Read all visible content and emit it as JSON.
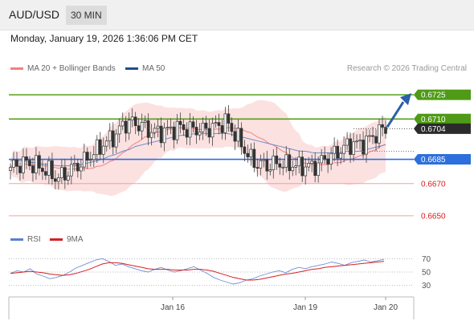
{
  "header": {
    "pair": "AUD/USD",
    "timeframe": "30 MIN"
  },
  "datetime": "Monday, January 19, 2026 1:36:06 PM CET",
  "legend": {
    "main": [
      {
        "label": "MA 20 + Bollinger Bands",
        "color": "#f08080"
      },
      {
        "label": "MA 50",
        "color": "#1f4e8c"
      }
    ],
    "rsi": [
      {
        "label": "RSI",
        "color": "#5a7fd6"
      },
      {
        "label": "9MA",
        "color": "#d62020"
      }
    ]
  },
  "credit": "Research © 2026 Trading Central",
  "chart_data": {
    "type": "candlestick",
    "y_range": [
      0.6643,
      0.6736
    ],
    "x_ticks": [
      "Jan 16",
      "Jan 19",
      "Jan 20"
    ],
    "current_price": "0.6704",
    "levels": [
      {
        "value": 0.6725,
        "label": "0.6725",
        "kind": "resistance"
      },
      {
        "value": 0.671,
        "label": "0.6710",
        "kind": "resistance"
      },
      {
        "value": 0.6685,
        "label": "0.6685",
        "kind": "pivot"
      },
      {
        "value": 0.667,
        "label": "0.6670",
        "kind": "support"
      },
      {
        "value": 0.665,
        "label": "0.6650",
        "kind": "support"
      }
    ],
    "close_path": [
      0.668,
      0.6681,
      0.6683,
      0.6682,
      0.6681,
      0.6679,
      0.6677,
      0.6673,
      0.6675,
      0.6678,
      0.6681,
      0.6683,
      0.6687,
      0.669,
      0.6694,
      0.6697,
      0.67,
      0.6706,
      0.6708,
      0.6707,
      0.6706,
      0.6703,
      0.6702,
      0.6702,
      0.6703,
      0.6704,
      0.6705,
      0.6703,
      0.6704,
      0.6703,
      0.6704,
      0.6705,
      0.6707,
      0.6708,
      0.6701,
      0.6695,
      0.6688,
      0.6683,
      0.6682,
      0.6681,
      0.6682,
      0.6683,
      0.6681,
      0.6682,
      0.668,
      0.6681,
      0.668,
      0.6683,
      0.6686,
      0.6688,
      0.669,
      0.6693,
      0.6695,
      0.6694,
      0.6696,
      0.6699,
      0.6702,
      0.6704
    ],
    "ma50": [
      0.6684,
      0.6684,
      0.6684,
      0.6683,
      0.6683,
      0.6682,
      0.6682,
      0.6681,
      0.6681,
      0.6681,
      0.6681,
      0.6682,
      0.6683,
      0.6684,
      0.6685,
      0.6687,
      0.6688,
      0.669,
      0.6691,
      0.6693,
      0.6694,
      0.6695,
      0.6696,
      0.6697,
      0.6698,
      0.6699,
      0.67,
      0.67,
      0.6701,
      0.6701,
      0.6701,
      0.6701,
      0.6701,
      0.6701,
      0.67,
      0.6699,
      0.6698,
      0.6697,
      0.6696,
      0.6695,
      0.6694,
      0.6693,
      0.6692,
      0.6691,
      0.669,
      0.669,
      0.6689,
      0.6689,
      0.6689,
      0.6689,
      0.6689,
      0.669,
      0.669,
      0.669,
      0.6691,
      0.6692,
      0.6693,
      0.6694
    ],
    "forecast": {
      "from": 0.6704,
      "to": 0.6725
    },
    "rsi": {
      "y_range": [
        20,
        80
      ],
      "levels": [
        70,
        50,
        30
      ],
      "rsi": [
        48,
        52,
        50,
        55,
        47,
        44,
        40,
        42,
        45,
        50,
        56,
        60,
        64,
        68,
        70,
        66,
        60,
        62,
        58,
        55,
        52,
        50,
        54,
        57,
        53,
        50,
        52,
        55,
        58,
        53,
        48,
        42,
        38,
        35,
        32,
        34,
        38,
        40,
        44,
        47,
        50,
        52,
        49,
        54,
        57,
        55,
        58,
        60,
        62,
        65,
        63,
        60,
        64,
        66,
        68,
        65,
        67,
        69
      ],
      "ma9": [
        48,
        49,
        50,
        51,
        50,
        49,
        47,
        46,
        45,
        46,
        48,
        51,
        54,
        58,
        62,
        64,
        64,
        63,
        61,
        59,
        57,
        55,
        54,
        54,
        54,
        53,
        53,
        53,
        54,
        54,
        53,
        51,
        48,
        45,
        42,
        40,
        38,
        38,
        39,
        41,
        43,
        45,
        47,
        48,
        50,
        52,
        54,
        55,
        57,
        58,
        59,
        60,
        61,
        62,
        63,
        64,
        65,
        66
      ]
    }
  }
}
